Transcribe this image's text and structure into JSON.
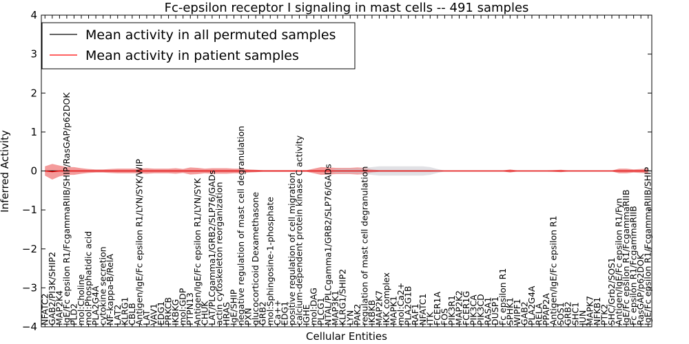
{
  "chart_data": {
    "type": "line",
    "title": "Fc-epsilon receptor I signaling in mast cells -- 491 samples",
    "xlabel": "Cellular Entities",
    "ylabel": "Inferred Activity",
    "ylim": [
      -4,
      4
    ],
    "yticks": [
      "4",
      "3",
      "2",
      "1",
      "0",
      "−1",
      "−2",
      "−3",
      "−4"
    ],
    "legend": {
      "placement": "top-left",
      "entries": [
        {
          "label": "Mean activity in all permuted samples",
          "color": "#000000"
        },
        {
          "label": "Mean activity in patient samples",
          "color": "#ff0000"
        }
      ]
    },
    "categories": [
      "NFATC2",
      "GAB2/PI3K/SHIP2",
      "MAP2K4",
      "IgE/Fc epsilon R1/FcgammaRIIB/SHIP/RasGAP/p62DOK",
      "PLD2",
      "mol:Choline",
      "mol:Phosphatidic acid",
      "PLA2G4A",
      "cytokine secretion",
      "NF-kappa-B/RelA",
      "LAT2",
      "KLRG1",
      "CBLB",
      "Antigen/IgE/Fc epsilon R1/LYN/SYK/WIP",
      "LAT",
      "VAV1",
      "EDG1",
      "PRKCB",
      "IKBKG",
      "mol:GDP",
      "PTPN13",
      "Antigen/IgE/Fc epsilon R1/LYN/SYK",
      "CHUK",
      "LAT/PLCgamma1/GRB2/SLP76/GADs",
      "actin cytoskeleton reorganization",
      "HRAS",
      "IgE/SHIP",
      "negative regulation of mast cell degranulation",
      "PXN",
      "glucocorticoid Dexamethasone",
      "GRB2",
      "mol:Sphingosine-1-phosphate",
      "Ca++",
      "EDG1",
      "positive regulation of cell migration",
      "calcium-dependent protein kinase C activity",
      "IGHE",
      "mol:DAG",
      "PLCG1",
      "NTAL/PLCgamma1/GRB2/SLP76/GADs",
      "MAP3K1",
      "KLRG1/SHIP2",
      "LYN",
      "PAK2",
      "regulation of mast cell degranulation",
      "IKBKB",
      "MAP2K7",
      "IKK complex",
      "MAPK1",
      "mol:Ca2+",
      "PLA2G1B",
      "RAF1",
      "NFATC1",
      "ITK",
      "FCER1A",
      "FOS",
      "PIK3R1",
      "MAP2K2",
      "FCER1G",
      "PIK3CA",
      "PIK3CD",
      "RASA1",
      "DUSP1",
      "Fc epsilon R1",
      "SPHK1",
      "WIPF1",
      "GAB2",
      "PLA2G4A",
      "RELA",
      "PPAP2A",
      "Antigen/IgE/Fc epsilon R1",
      "SOS1",
      "GRB2",
      "SHC1",
      "JUN",
      "MAPK7",
      "NFKB1",
      "PTK2",
      "SHC/Grb2/SOS1",
      "Antigen/IgE/Fc epsilon R1/Fyn",
      "IgE/Fc epsilon R1/FcgammaRIIB",
      "Fc epsilon R1/FcgammaRIIB",
      "RasGAP/p62DOK",
      "IgE/Fc epsilon R1/FcgammaRIIB/SHIP"
    ],
    "series": [
      {
        "name": "Mean activity in patient samples",
        "color": "#ff0000",
        "band_color": "#f07070",
        "values": [
          0.0,
          -0.02,
          0.0,
          0.0,
          0.0,
          0.0,
          0.0,
          0.0,
          0.0,
          0.0,
          0.0,
          0.0,
          0.0,
          0.0,
          0.0,
          0.0,
          0.0,
          0.0,
          0.0,
          0.0,
          0.0,
          0.0,
          0.0,
          0.0,
          0.0,
          0.0,
          0.0,
          0.0,
          0.0,
          0.0,
          0.0,
          0.0,
          0.0,
          0.0,
          0.0,
          0.0,
          0.0,
          0.0,
          0.0,
          0.0,
          0.0,
          0.0,
          0.0,
          0.0,
          0.0,
          0.0,
          0.0,
          0.0,
          0.0,
          0.0,
          0.0,
          0.0,
          0.0,
          0.0,
          0.0,
          0.0,
          0.0,
          0.0,
          0.0,
          0.0,
          0.0,
          0.0,
          0.0,
          0.0,
          0.0,
          0.0,
          0.0,
          0.0,
          0.0,
          0.0,
          0.0,
          0.0,
          0.0,
          0.0,
          0.0,
          0.0,
          0.0,
          0.0,
          0.0,
          0.0,
          0.0,
          0.0,
          0.0,
          0.0
        ],
        "band_halfwidth": [
          0.12,
          0.2,
          0.14,
          0.1,
          0.1,
          0.07,
          0.05,
          0.04,
          0.04,
          0.05,
          0.06,
          0.06,
          0.06,
          0.06,
          0.07,
          0.06,
          0.06,
          0.06,
          0.07,
          0.05,
          0.09,
          0.08,
          0.06,
          0.07,
          0.07,
          0.07,
          0.06,
          0.06,
          0.04,
          0.03,
          0.02,
          0.02,
          0.02,
          0.02,
          0.02,
          0.02,
          0.02,
          0.06,
          0.1,
          0.09,
          0.08,
          0.08,
          0.08,
          0.09,
          0.08,
          0.04,
          0.02,
          0.02,
          0.02,
          0.02,
          0.02,
          0.02,
          0.02,
          0.02,
          0.01,
          0.01,
          0.01,
          0.01,
          0.01,
          0.01,
          0.01,
          0.01,
          0.01,
          0.01,
          0.04,
          0.01,
          0.01,
          0.01,
          0.01,
          0.01,
          0.02,
          0.03,
          0.01,
          0.01,
          0.01,
          0.01,
          0.01,
          0.01,
          0.01,
          0.06,
          0.06,
          0.04,
          0.05,
          0.06
        ]
      },
      {
        "name": "Mean activity in all permuted samples",
        "color": "#000000",
        "band_color": "#c8c8d0",
        "values": [
          0.0,
          0.0,
          0.0,
          0.0,
          0.0,
          0.0,
          0.0,
          0.0,
          0.0,
          0.0,
          0.0,
          0.0,
          0.0,
          0.0,
          0.0,
          0.0,
          0.0,
          0.0,
          0.0,
          0.0,
          0.0,
          0.0,
          0.0,
          0.0,
          0.0,
          0.0,
          0.0,
          0.0,
          0.0,
          0.0,
          0.0,
          0.0,
          0.0,
          0.0,
          0.0,
          0.0,
          0.0,
          0.0,
          0.0,
          0.0,
          0.0,
          0.0,
          0.0,
          0.0,
          0.0,
          0.0,
          0.0,
          0.0,
          0.0,
          0.0,
          0.0,
          0.0,
          0.0,
          0.0,
          0.0,
          0.0,
          0.0,
          0.0,
          0.0,
          0.0,
          0.0,
          0.0,
          0.0,
          0.0,
          0.0,
          0.0,
          0.0,
          0.0,
          0.0,
          0.0,
          0.0,
          0.0,
          0.0,
          0.0,
          0.0,
          0.0,
          0.0,
          0.0,
          0.0,
          0.0,
          0.0,
          0.0,
          0.0,
          0.0
        ],
        "band_halfwidth": [
          0.01,
          0.01,
          0.01,
          0.01,
          0.01,
          0.01,
          0.01,
          0.01,
          0.01,
          0.01,
          0.01,
          0.01,
          0.01,
          0.01,
          0.01,
          0.01,
          0.01,
          0.01,
          0.01,
          0.01,
          0.01,
          0.01,
          0.01,
          0.01,
          0.01,
          0.01,
          0.01,
          0.01,
          0.01,
          0.01,
          0.01,
          0.01,
          0.01,
          0.01,
          0.01,
          0.01,
          0.01,
          0.01,
          0.01,
          0.01,
          0.05,
          0.06,
          0.06,
          0.06,
          0.08,
          0.1,
          0.12,
          0.12,
          0.12,
          0.12,
          0.12,
          0.12,
          0.12,
          0.1,
          0.05,
          0.01,
          0.01,
          0.01,
          0.01,
          0.01,
          0.01,
          0.01,
          0.01,
          0.01,
          0.01,
          0.01,
          0.01,
          0.01,
          0.01,
          0.01,
          0.01,
          0.01,
          0.01,
          0.01,
          0.01,
          0.01,
          0.01,
          0.01,
          0.01,
          0.01,
          0.01,
          0.01,
          0.01,
          0.01
        ]
      }
    ],
    "grid": false
  }
}
